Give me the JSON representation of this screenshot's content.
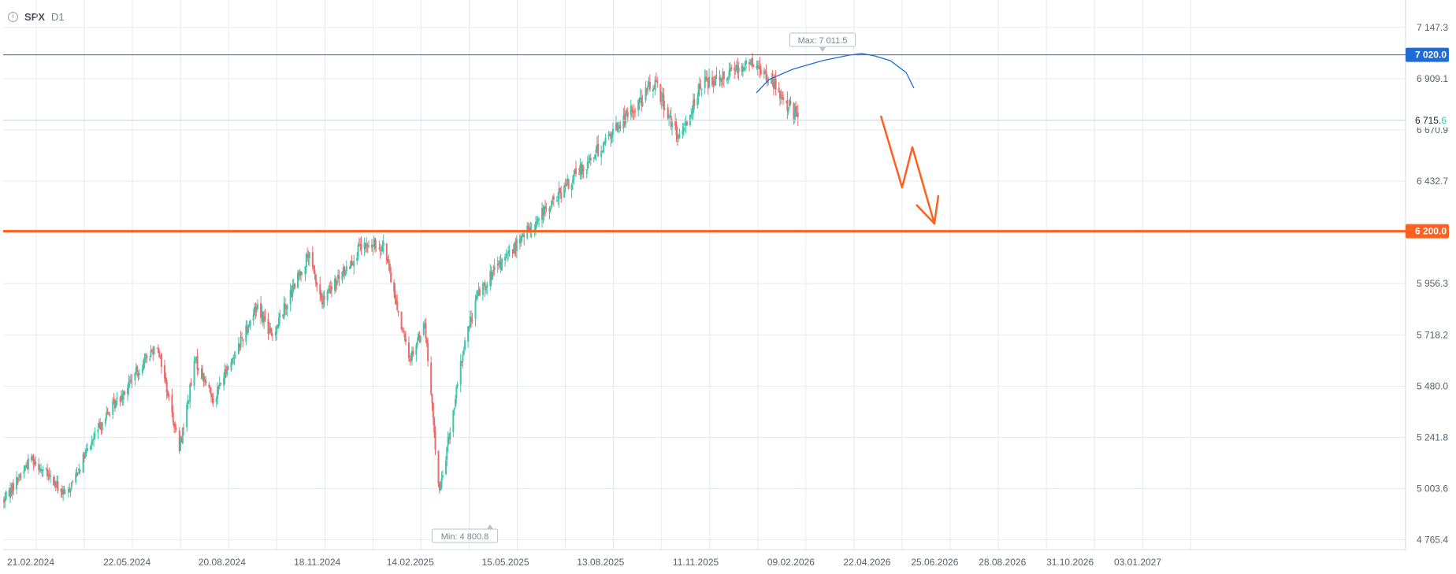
{
  "header": {
    "info_icon": "info-icon",
    "symbol": "SPX",
    "timeframe": "D1"
  },
  "colors": {
    "up": "#3fc5a8",
    "down": "#ef6a6a",
    "grid": "#e6eaf3",
    "blue": "#1f6bd6",
    "orange": "#ff5f1f"
  },
  "chart_data": {
    "type": "candlestick",
    "y_ticks": [
      "7 147.3",
      "6 909.1",
      "6 670.9",
      "6 432.7",
      "5 956.3",
      "5 718.2",
      "5 480.0",
      "5 241.8",
      "5 003.6",
      "4 765.4"
    ],
    "x_ticks": [
      "21.02.2024",
      "22.05.2024",
      "20.08.2024",
      "18.11.2024",
      "14.02.2025",
      "15.05.2025",
      "13.08.2025",
      "11.11.2025",
      "09.02.2026",
      "22.04.2026",
      "25.06.2026",
      "28.08.2026",
      "31.10.2026",
      "03.01.2027"
    ],
    "ylim": [
      4720,
      7275
    ],
    "max_label": "Max: 7 011.5",
    "min_label": "Min: 4 800.8",
    "levels": [
      {
        "value": 7020.0,
        "label": "7 020.0",
        "color": "#1f6bd6"
      },
      {
        "value": 6200.0,
        "label": "6 200.0",
        "color": "#ff5f1f"
      }
    ],
    "current_price": {
      "value": 6715.6,
      "label_main": "6 715.",
      "label_last": "6"
    },
    "series_anchors": [
      {
        "date": "21.02.2024",
        "value": 4950
      },
      {
        "date": "18.03.2024",
        "value": 5150
      },
      {
        "date": "19.04.2024",
        "value": 4970
      },
      {
        "date": "22.05.2024",
        "value": 5300
      },
      {
        "date": "15.07.2024",
        "value": 5680
      },
      {
        "date": "05.08.2024",
        "value": 5190
      },
      {
        "date": "20.08.2024",
        "value": 5600
      },
      {
        "date": "06.09.2024",
        "value": 5420
      },
      {
        "date": "18.10.2024",
        "value": 5860
      },
      {
        "date": "31.10.2024",
        "value": 5710
      },
      {
        "date": "05.12.2024",
        "value": 6090
      },
      {
        "date": "18.12.2024",
        "value": 5870
      },
      {
        "date": "23.01.2025",
        "value": 6120
      },
      {
        "date": "14.02.2025",
        "value": 6140
      },
      {
        "date": "10.03.2025",
        "value": 5600
      },
      {
        "date": "25.03.2025",
        "value": 5770
      },
      {
        "date": "08.04.2025",
        "value": 4980
      },
      {
        "date": "02.05.2025",
        "value": 5690
      },
      {
        "date": "15.05.2025",
        "value": 5920
      },
      {
        "date": "27.06.2025",
        "value": 6180
      },
      {
        "date": "13.08.2025",
        "value": 6450
      },
      {
        "date": "10.10.2025",
        "value": 6780
      },
      {
        "date": "29.10.2025",
        "value": 6900
      },
      {
        "date": "20.11.2025",
        "value": 6620
      },
      {
        "date": "11.12.2025",
        "value": 6880
      },
      {
        "date": "27.01.2026",
        "value": 6990
      },
      {
        "date": "16.02.2026",
        "value": 6900
      },
      {
        "date": "13.03.2026",
        "value": 6720
      }
    ],
    "grid": true
  }
}
